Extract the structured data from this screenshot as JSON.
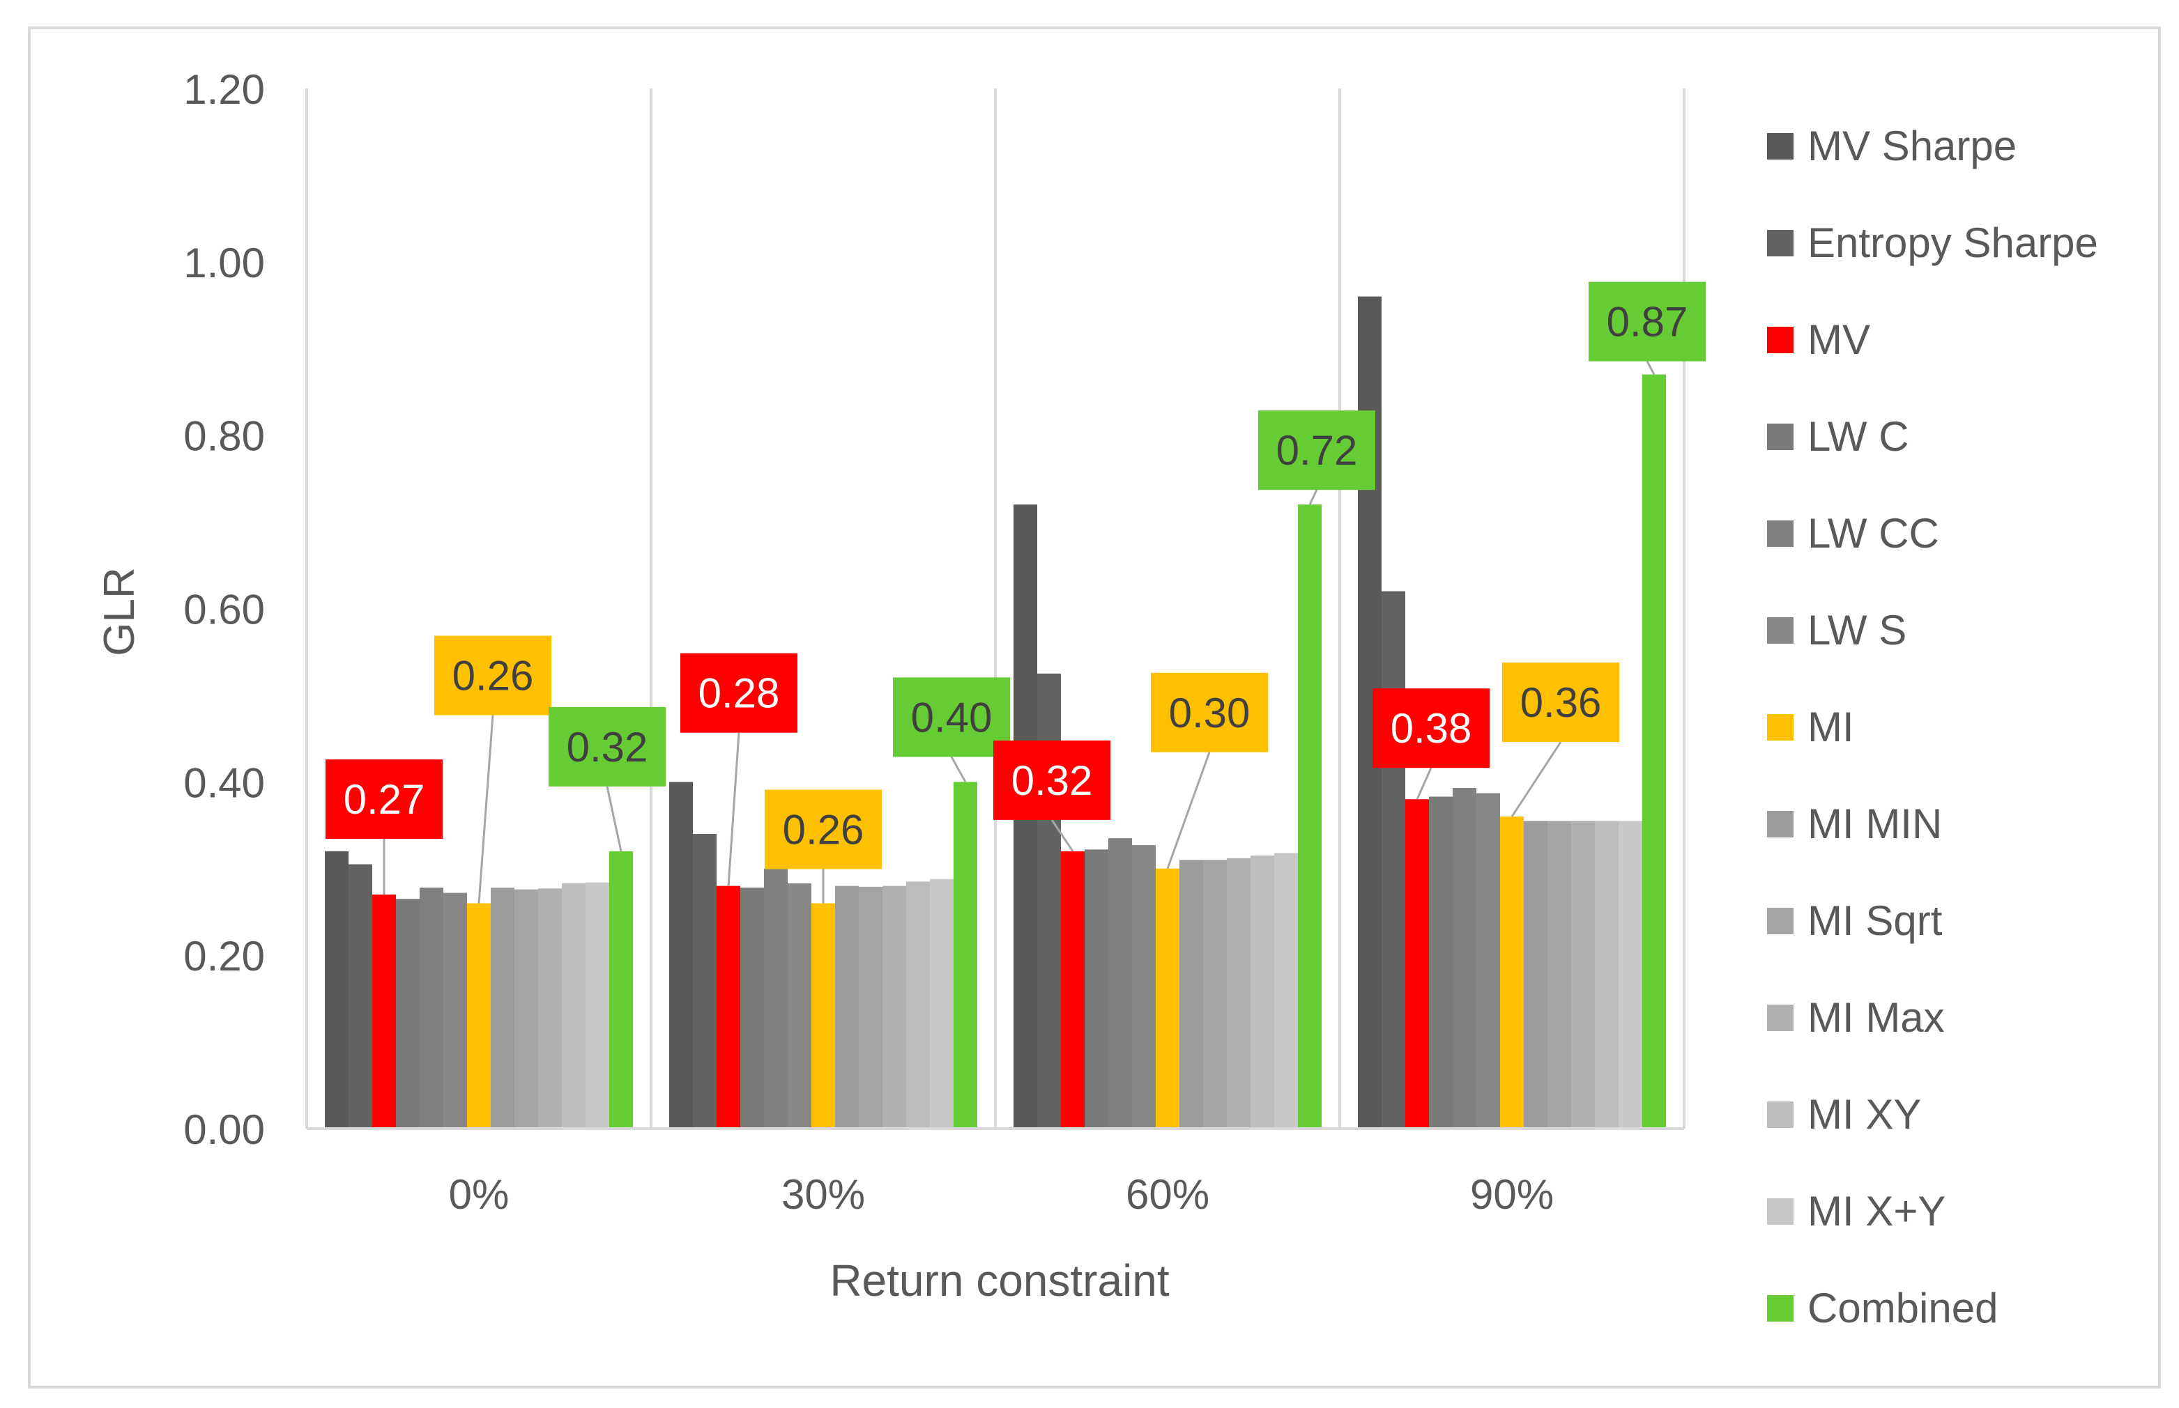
{
  "chart_data": {
    "type": "bar",
    "title": "",
    "xlabel": "Return constraint",
    "ylabel": "GLR",
    "ylim": [
      0,
      1.2
    ],
    "yticks": [
      "0.00",
      "0.20",
      "0.40",
      "0.60",
      "0.80",
      "1.00",
      "1.20"
    ],
    "ytick_values": [
      0,
      0.2,
      0.4,
      0.6,
      0.8,
      1.0,
      1.2
    ],
    "categories": [
      "0%",
      "30%",
      "60%",
      "90%"
    ],
    "legend_position": "right",
    "series": [
      {
        "name": "MV Sharpe",
        "color": "#595959",
        "values": [
          0.32,
          0.4,
          0.72,
          0.96
        ]
      },
      {
        "name": "Entropy Sharpe",
        "color": "#636363",
        "values": [
          0.305,
          0.34,
          0.525,
          0.62
        ]
      },
      {
        "name": "MV",
        "color": "#ff0000",
        "values": [
          0.27,
          0.28,
          0.32,
          0.38
        ]
      },
      {
        "name": "LW C",
        "color": "#7a7a7a",
        "values": [
          0.265,
          0.278,
          0.322,
          0.383
        ]
      },
      {
        "name": "LW CC",
        "color": "#808080",
        "values": [
          0.278,
          0.3,
          0.335,
          0.393
        ]
      },
      {
        "name": "LW S",
        "color": "#878787",
        "values": [
          0.272,
          0.283,
          0.327,
          0.387
        ]
      },
      {
        "name": "MI",
        "color": "#ffc000",
        "values": [
          0.26,
          0.26,
          0.3,
          0.36
        ]
      },
      {
        "name": "MI MIN",
        "color": "#9c9c9c",
        "values": [
          0.278,
          0.28,
          0.31,
          0.355
        ]
      },
      {
        "name": "MI Sqrt",
        "color": "#a5a5a5",
        "values": [
          0.276,
          0.279,
          0.31,
          0.355
        ]
      },
      {
        "name": "MI Max",
        "color": "#b0b0b0",
        "values": [
          0.277,
          0.28,
          0.312,
          0.355
        ]
      },
      {
        "name": "MI XY",
        "color": "#bdbdbd",
        "values": [
          0.283,
          0.285,
          0.315,
          0.355
        ]
      },
      {
        "name": "MI X+Y",
        "color": "#c8c8c8",
        "values": [
          0.284,
          0.288,
          0.318,
          0.355
        ]
      },
      {
        "name": "Combined",
        "color": "#66cc33",
        "values": [
          0.32,
          0.4,
          0.72,
          0.87
        ]
      }
    ],
    "annotations": [
      {
        "text": "0.27",
        "series": "MV",
        "category": "0%",
        "color": "#ff0000"
      },
      {
        "text": "0.26",
        "series": "MI",
        "category": "0%",
        "color": "#ffc000"
      },
      {
        "text": "0.32",
        "series": "Combined",
        "category": "0%",
        "color": "#66cc33"
      },
      {
        "text": "0.28",
        "series": "MV",
        "category": "30%",
        "color": "#ff0000"
      },
      {
        "text": "0.26",
        "series": "MI",
        "category": "30%",
        "color": "#ffc000"
      },
      {
        "text": "0.40",
        "series": "Combined",
        "category": "30%",
        "color": "#66cc33"
      },
      {
        "text": "0.32",
        "series": "MV",
        "category": "60%",
        "color": "#ff0000"
      },
      {
        "text": "0.30",
        "series": "MI",
        "category": "60%",
        "color": "#ffc000"
      },
      {
        "text": "0.72",
        "series": "Combined",
        "category": "60%",
        "color": "#66cc33"
      },
      {
        "text": "0.38",
        "series": "MV",
        "category": "90%",
        "color": "#ff0000"
      },
      {
        "text": "0.36",
        "series": "MI",
        "category": "90%",
        "color": "#ffc000"
      },
      {
        "text": "0.87",
        "series": "Combined",
        "category": "90%",
        "color": "#66cc33"
      }
    ]
  }
}
